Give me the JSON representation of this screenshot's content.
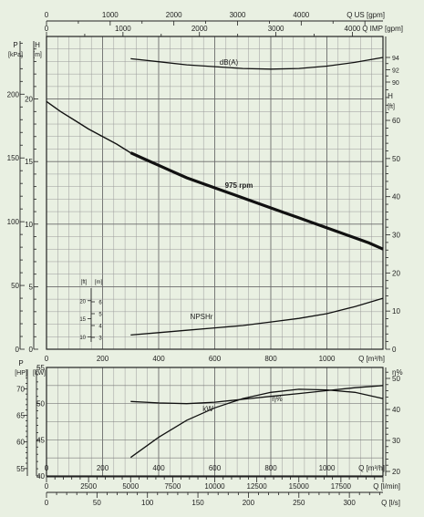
{
  "chart_data": [
    {
      "id": "pump-curve",
      "type": "line",
      "title": "",
      "flow_axis": {
        "label": "Q [m³/h]",
        "ticks": [
          0,
          200,
          400,
          600,
          800,
          1000
        ],
        "range": [
          0,
          1200
        ]
      },
      "top_axis_us": {
        "label": "Q US [gpm]",
        "ticks": [
          0,
          1000,
          2000,
          3000,
          4000
        ],
        "range": [
          0,
          5284
        ]
      },
      "top_axis_imp": {
        "label": "Q IMP [gpm]",
        "ticks": [
          0,
          1000,
          2000,
          3000,
          4000
        ],
        "range": [
          0,
          4400
        ]
      },
      "left_axis_kpa": {
        "unit_symbol": "P",
        "unit": "[kPa]",
        "ticks": [
          0,
          50,
          100,
          150,
          200
        ]
      },
      "left_axis_m": {
        "unit_symbol": "H",
        "unit": "[m]",
        "ticks": [
          0,
          5,
          10,
          15,
          20
        ],
        "range": [
          0,
          25
        ]
      },
      "right_axis_ft": {
        "unit_symbol": "H",
        "unit": "[ft]",
        "ticks": [
          0,
          10,
          20,
          30,
          40,
          50,
          60
        ],
        "range": [
          0,
          82
        ]
      },
      "right_axis_db": {
        "ticks": [
          90,
          92,
          94
        ],
        "range": [
          90,
          94
        ]
      },
      "npsh_axis": {
        "unit_ft": "[ft]",
        "unit_m": "[m]",
        "ticks_ft": [
          10,
          15,
          20
        ],
        "ticks_m": [
          3,
          4,
          5,
          6
        ]
      },
      "series": [
        {
          "name": "975 rpm",
          "x": [
            0,
            50,
            100,
            150,
            200,
            250,
            300,
            350,
            400,
            450,
            500,
            550,
            600,
            650,
            700,
            750,
            800,
            850,
            900,
            950,
            1000,
            1050,
            1100,
            1150,
            1200
          ],
          "y": [
            19.8,
            19.0,
            18.3,
            17.6,
            17.0,
            16.4,
            15.7,
            15.2,
            14.7,
            14.2,
            13.7,
            13.3,
            12.9,
            12.5,
            12.1,
            11.7,
            11.3,
            10.9,
            10.5,
            10.1,
            9.7,
            9.3,
            8.9,
            8.5,
            8.0
          ]
        },
        {
          "name": "dB(A)",
          "x": [
            300,
            400,
            500,
            600,
            700,
            800,
            900,
            1000,
            1100,
            1200
          ],
          "y": [
            93.8,
            93.3,
            92.8,
            92.5,
            92.2,
            92.1,
            92.2,
            92.6,
            93.2,
            94.0
          ]
        },
        {
          "name": "NPSHr",
          "x": [
            300,
            400,
            500,
            600,
            700,
            800,
            900,
            1000,
            1100,
            1200
          ],
          "y": [
            3.2,
            3.4,
            3.6,
            3.8,
            4.0,
            4.3,
            4.6,
            5.0,
            5.6,
            6.3
          ]
        }
      ]
    },
    {
      "id": "power-efficiency",
      "type": "line",
      "title": "",
      "flow_axis_m3h": {
        "label": "Q [m³/h]",
        "ticks": [
          0,
          200,
          400,
          600,
          800,
          1000
        ],
        "range": [
          0,
          1200
        ]
      },
      "flow_axis_lmin": {
        "label": "Q [l/min]",
        "ticks": [
          0,
          2500,
          5000,
          7500,
          10000,
          12500,
          15000,
          17500
        ],
        "range": [
          0,
          20000
        ]
      },
      "flow_axis_ls": {
        "label": "Q [l/s]",
        "ticks": [
          0,
          50,
          100,
          150,
          200,
          250,
          300
        ],
        "range": [
          0,
          333.3
        ]
      },
      "left_axis_hp": {
        "unit_symbol": "P",
        "unit": "[HP]",
        "ticks": [
          55,
          60,
          65,
          70
        ],
        "range": [
          53.6,
          74
        ]
      },
      "left_axis_kw": {
        "unit": "[kW]",
        "ticks": [
          40,
          45,
          50,
          55
        ],
        "range": [
          40,
          55
        ]
      },
      "right_axis_eta": {
        "unit": "η%",
        "ticks": [
          20,
          30,
          40,
          50
        ],
        "range": [
          20,
          50
        ]
      },
      "series": [
        {
          "name": "kW",
          "x": [
            300,
            400,
            500,
            600,
            700,
            800,
            900,
            1000,
            1100,
            1200
          ],
          "y": [
            50.3,
            50.1,
            50.0,
            50.2,
            50.6,
            51.0,
            51.4,
            51.8,
            52.2,
            52.5
          ]
        },
        {
          "name": "η%",
          "x": [
            300,
            400,
            500,
            600,
            700,
            800,
            900,
            1000,
            1100,
            1200
          ],
          "y": [
            24.5,
            31.0,
            36.5,
            40.5,
            43.5,
            45.5,
            46.5,
            46.3,
            45.5,
            43.5
          ]
        }
      ]
    }
  ]
}
